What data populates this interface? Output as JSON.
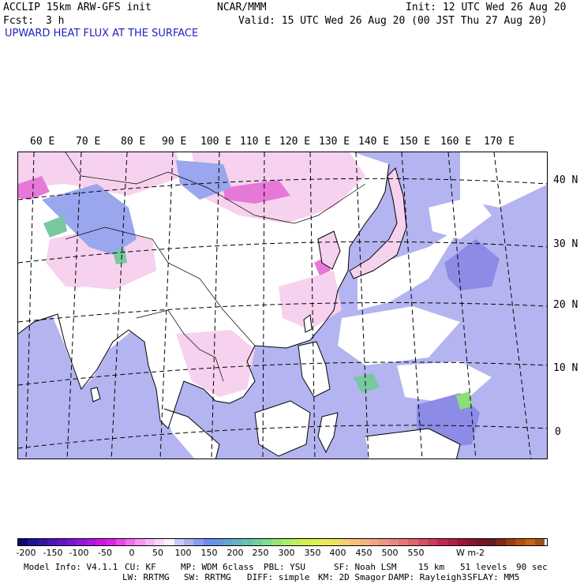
{
  "header": {
    "model_line": "ACCLIP 15km ARW-GFS init",
    "org": "NCAR/MMM",
    "init": "Init: 12 UTC Wed 26 Aug 20",
    "fcst_label": "Fcst:",
    "fcst_value": "3 h",
    "valid": "Valid: 15 UTC Wed 26 Aug 20 (00 JST Thu 27 Aug 20)",
    "field_title": "UPWARD HEAT FLUX AT THE SURFACE"
  },
  "map": {
    "lon_labels": [
      "60 E",
      "70 E",
      "80 E",
      "90 E",
      "100 E",
      "110 E",
      "120 E",
      "130 E",
      "140 E",
      "150 E",
      "160 E",
      "170 E"
    ],
    "lat_labels": [
      "40 N",
      "30 N",
      "20 N",
      "10 N",
      "0"
    ],
    "colors": {
      "ocean": "#b4b4f0",
      "ocean_dark": "#8c8ce6",
      "land": "#ffffff",
      "land_pink": "#f6d2ee",
      "land_magenta": "#e678d8",
      "land_green": "#78c8a0",
      "coast": "#000000"
    }
  },
  "colorbar": {
    "tick_labels": [
      "-200",
      "-150",
      "-100",
      "-50",
      "0",
      "50",
      "100",
      "150",
      "200",
      "250",
      "300",
      "350",
      "400",
      "450",
      "500",
      "550"
    ],
    "units": "W m-2",
    "colors": [
      "#0a0a6e",
      "#1e1491",
      "#3214a5",
      "#4b14b9",
      "#6414c8",
      "#7d14d2",
      "#9614dc",
      "#b414e1",
      "#cd14e6",
      "#e11ee6",
      "#eb46eb",
      "#f06ef0",
      "#f596f5",
      "#f8b9f8",
      "#fad7fa",
      "#fff0ff",
      "#c8c8ff",
      "#aab4f5",
      "#8c9cf0",
      "#6e8ceb",
      "#6496dc",
      "#64a5d2",
      "#64b4c3",
      "#64c3b4",
      "#6ed2a0",
      "#82dc8c",
      "#96e678",
      "#aaf064",
      "#bef05a",
      "#d2f050",
      "#e1f050",
      "#ebeb5a",
      "#f0e164",
      "#f5d26e",
      "#f5c378",
      "#f5b47d",
      "#f5a582",
      "#f09682",
      "#eb8782",
      "#e67878",
      "#e1646e",
      "#d75064",
      "#cd3c5a",
      "#c32850",
      "#b41e46",
      "#a0143c",
      "#8c1432",
      "#781428",
      "#641e1e",
      "#822814",
      "#9b3c14",
      "#b4500a",
      "#c36414",
      "#a0501e"
    ]
  },
  "footer": {
    "line1": [
      "Model Info: V4.1.1",
      "CU: KF",
      "MP: WDM 6class",
      "PBL: YSU",
      "SF: Noah LSM",
      "15 km",
      "51 levels",
      "90 sec"
    ],
    "line2": [
      "LW: RRTMG",
      "SW: RRTMG",
      "DIFF: simple",
      "KM: 2D Smagor",
      "DAMP: Rayleigh3",
      "SFLAY: MM5"
    ]
  }
}
